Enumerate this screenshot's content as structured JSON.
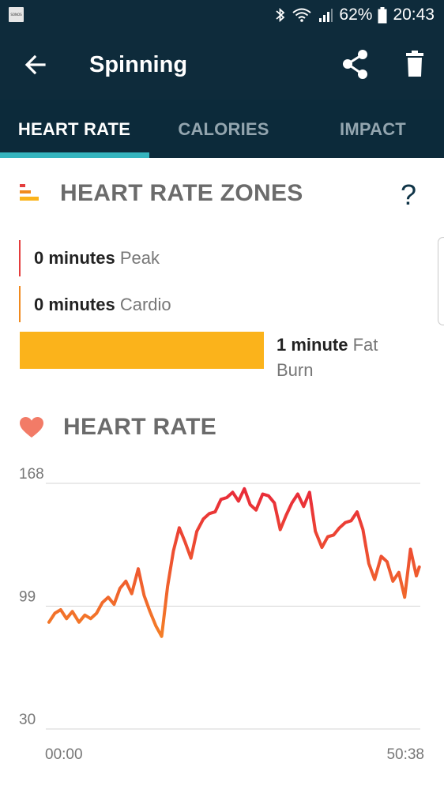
{
  "status_bar": {
    "notification_app": "SONOS",
    "battery": "62%",
    "time": "20:43",
    "icons": [
      "bluetooth-icon",
      "wifi-icon",
      "signal-icon",
      "battery-icon"
    ]
  },
  "app_bar": {
    "title": "Spinning",
    "icons": [
      "back-arrow-icon",
      "share-icon",
      "trash-icon"
    ]
  },
  "tabs": [
    {
      "label": "HEART RATE",
      "active": true
    },
    {
      "label": "CALORIES",
      "active": false
    },
    {
      "label": "IMPACT",
      "active": false
    }
  ],
  "zones_section": {
    "title": "HEART RATE ZONES",
    "help": "?",
    "zones": [
      {
        "value": "0 minutes",
        "name": "Peak",
        "color": "#e43d3d"
      },
      {
        "value": "0 minutes",
        "name": "Cardio",
        "color": "#f08a1e"
      },
      {
        "value": "1 minute",
        "name": "Fat Burn",
        "color": "#fbb31b"
      }
    ]
  },
  "heart_rate_section": {
    "title": "HEART RATE"
  },
  "chart_data": {
    "type": "line",
    "title": "",
    "xlabel": "",
    "ylabel": "",
    "x_tick_labels": [
      "00:00",
      "50:38"
    ],
    "y_ticks": [
      30,
      99,
      168
    ],
    "ylim": [
      30,
      168
    ],
    "x_range_seconds": [
      0,
      3038
    ],
    "grid": true,
    "gradient_colors": [
      "#fbb31b",
      "#e8273a"
    ],
    "series": [
      {
        "x_minutes": [
          0,
          0.8,
          1.6,
          2.4,
          3.2,
          4.1,
          4.9,
          5.7,
          6.5,
          7.3,
          8.1,
          8.9,
          9.7,
          10.5,
          11.3,
          12.2,
          13.0,
          13.8,
          14.6,
          15.4,
          16.2,
          17.0,
          17.8,
          18.6,
          19.4,
          20.2,
          21.1,
          21.9,
          22.7,
          23.5,
          24.3,
          25.1,
          25.9,
          26.7,
          27.5,
          28.3,
          29.2,
          30.0,
          30.8,
          31.6,
          32.4,
          33.2,
          34.0,
          34.8,
          35.6,
          36.4,
          37.3,
          38.1,
          38.9,
          39.7,
          40.5,
          41.3,
          42.1,
          42.9,
          43.7,
          44.5,
          45.4,
          46.2,
          47.0,
          47.8,
          48.6,
          49.4,
          50.2,
          50.6
        ],
        "values": [
          90,
          95,
          97,
          92,
          96,
          90,
          94,
          92,
          95,
          101,
          104,
          100,
          109,
          113,
          106,
          120,
          105,
          96,
          88,
          82,
          110,
          130,
          143,
          135,
          126,
          141,
          148,
          151,
          152,
          159,
          160,
          163,
          158,
          165,
          156,
          153,
          162,
          161,
          157,
          142,
          150,
          157,
          162,
          155,
          163,
          141,
          132,
          138,
          139,
          143,
          146,
          147,
          152,
          142,
          123,
          114,
          127,
          124,
          113,
          118,
          104,
          131,
          116,
          121
        ]
      }
    ]
  }
}
